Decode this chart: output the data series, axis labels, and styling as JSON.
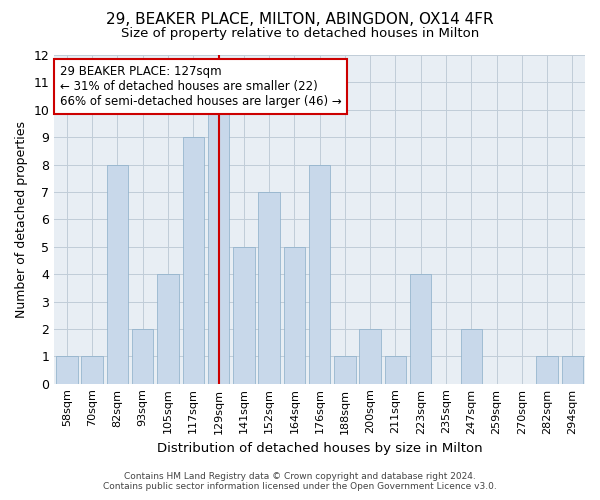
{
  "title": "29, BEAKER PLACE, MILTON, ABINGDON, OX14 4FR",
  "subtitle": "Size of property relative to detached houses in Milton",
  "xlabel": "Distribution of detached houses by size in Milton",
  "ylabel": "Number of detached properties",
  "categories": [
    "58sqm",
    "70sqm",
    "82sqm",
    "93sqm",
    "105sqm",
    "117sqm",
    "129sqm",
    "141sqm",
    "152sqm",
    "164sqm",
    "176sqm",
    "188sqm",
    "200sqm",
    "211sqm",
    "223sqm",
    "235sqm",
    "247sqm",
    "259sqm",
    "270sqm",
    "282sqm",
    "294sqm"
  ],
  "values": [
    1,
    1,
    8,
    2,
    4,
    9,
    10,
    5,
    7,
    5,
    8,
    1,
    2,
    1,
    4,
    0,
    2,
    0,
    0,
    1,
    1
  ],
  "bar_color": "#c8d8ea",
  "bar_edge_color": "#8aaec8",
  "highlight_index": 6,
  "highlight_line_color": "#cc0000",
  "ylim": [
    0,
    12
  ],
  "yticks": [
    0,
    1,
    2,
    3,
    4,
    5,
    6,
    7,
    8,
    9,
    10,
    11,
    12
  ],
  "annotation_text": "29 BEAKER PLACE: 127sqm\n← 31% of detached houses are smaller (22)\n66% of semi-detached houses are larger (46) →",
  "annotation_box_color": "#cc0000",
  "footer_line1": "Contains HM Land Registry data © Crown copyright and database right 2024.",
  "footer_line2": "Contains public sector information licensed under the Open Government Licence v3.0.",
  "background_color": "#ffffff",
  "plot_bg_color": "#e8eef4",
  "grid_color": "#c0ccd8"
}
